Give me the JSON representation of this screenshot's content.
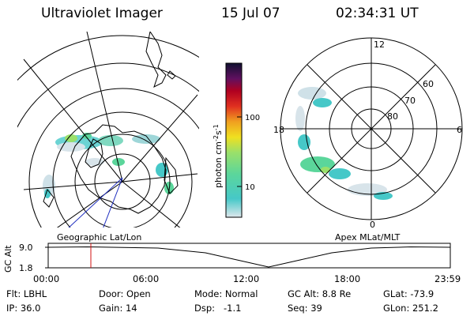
{
  "header": {
    "instrument": "Ultraviolet Imager",
    "date": "15 Jul 07",
    "time": "02:34:31 UT"
  },
  "colorbar": {
    "label": "photon cm",
    "label_sup1": "-2",
    "label_mid": "s",
    "label_sup2": "-1",
    "ticks": [
      "100",
      "10"
    ],
    "scale": "log",
    "colors": [
      "#dfe7ec",
      "#46c8c8",
      "#5bd69b",
      "#9ae06a",
      "#f0e020",
      "#f0a020",
      "#e03020",
      "#b00020",
      "#601060",
      "#101030"
    ]
  },
  "geo_panel": {
    "caption": "Geographic Lat/Lon"
  },
  "mlt_panel": {
    "caption": "Apex MLat/MLT",
    "mlt_labels": {
      "top": "12",
      "left": "18",
      "right": "6",
      "bottom": "0"
    },
    "lat_labels": [
      "60",
      "70",
      "80"
    ]
  },
  "altitude_plot": {
    "ylabel": "GC Alt",
    "yticks": [
      "9.0",
      "1.8"
    ],
    "xticks": [
      "00:00",
      "06:00",
      "12:00",
      "18:00",
      "23:59"
    ],
    "marker_time": "02:34:31"
  },
  "status": {
    "row1": [
      {
        "label": "Flt:",
        "value": "LBHL"
      },
      {
        "label": "Door:",
        "value": "Open"
      },
      {
        "label": "Mode:",
        "value": "Normal"
      },
      {
        "label": "GC Alt:",
        "value": "8.8 Re"
      },
      {
        "label": "GLat:",
        "value": "-73.9"
      }
    ],
    "row2": [
      {
        "label": "IP:",
        "value": "36.0"
      },
      {
        "label": "Gain:",
        "value": "14"
      },
      {
        "label": "Dsp:",
        "value": "  -1.1"
      },
      {
        "label": "Seq:",
        "value": "39"
      },
      {
        "label": "GLon:",
        "value": "251.2"
      }
    ]
  }
}
